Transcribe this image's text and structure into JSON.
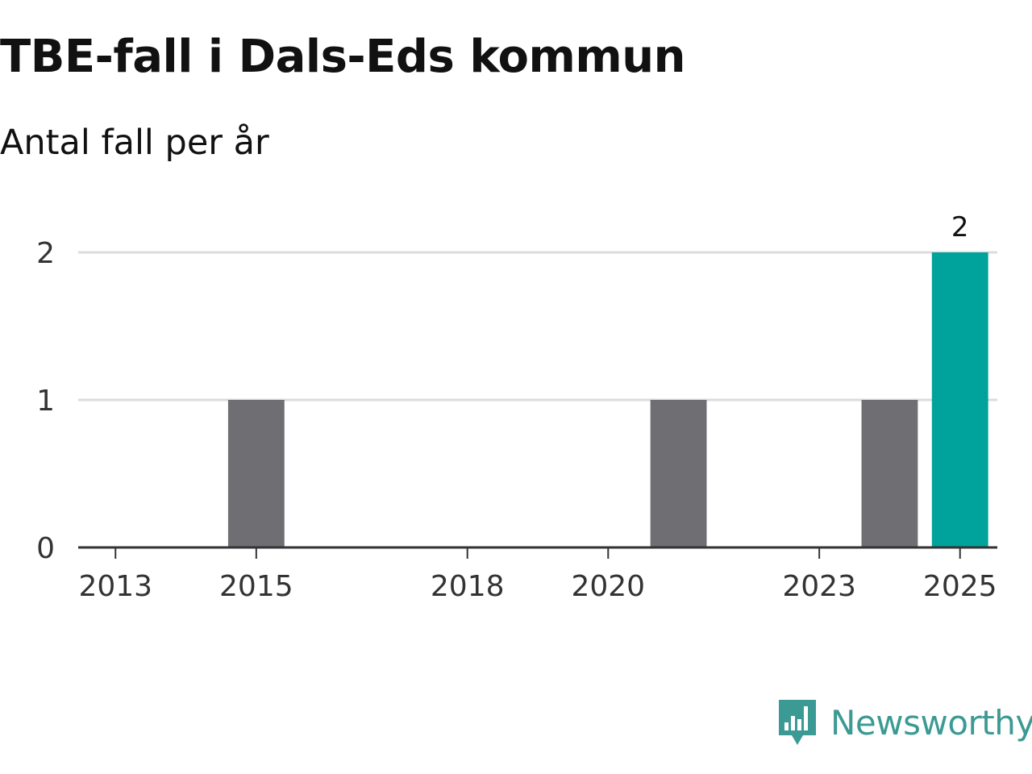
{
  "title": "TBE-fall i Dals-Eds kommun",
  "subtitle": "Antal fall per år",
  "brand": {
    "name": "Newsworthy",
    "icon": "newsworthy-logo-icon"
  },
  "colors": {
    "default_bar": "#6f6e73",
    "highlight_bar": "#00a39b",
    "gridline": "#dcdcdc",
    "axis": "#333333",
    "brand": "#3b9a93"
  },
  "chart_data": {
    "type": "bar",
    "title": "TBE-fall i Dals-Eds kommun",
    "subtitle": "Antal fall per år",
    "xlabel": "",
    "ylabel": "",
    "categories": [
      "2013",
      "2014",
      "2015",
      "2016",
      "2017",
      "2018",
      "2019",
      "2020",
      "2021",
      "2022",
      "2023",
      "2024",
      "2025"
    ],
    "x_tick_labels": [
      "2013",
      "2015",
      "2018",
      "2020",
      "2023",
      "2025"
    ],
    "values": [
      0,
      0,
      1,
      0,
      0,
      0,
      0,
      0,
      1,
      0,
      0,
      1,
      2
    ],
    "highlight_category": "2025",
    "data_labels": [
      {
        "category": "2025",
        "text": "2"
      }
    ],
    "y_ticks": [
      "0",
      "1",
      "2"
    ],
    "ylim": [
      0,
      2
    ],
    "grid": true,
    "legend": "none"
  }
}
